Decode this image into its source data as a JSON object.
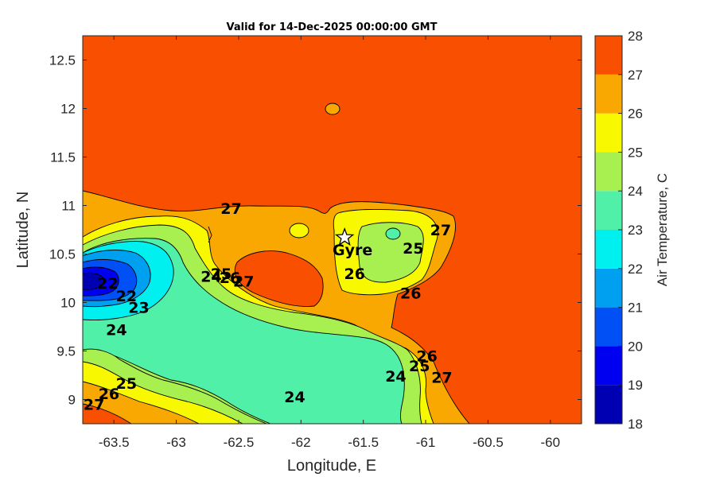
{
  "chart_data": {
    "type": "contour",
    "title": "Valid for 14-Dec-2025 00:00:00 GMT",
    "xlabel": "Longitude, E",
    "ylabel": "Latitude, N",
    "xlim": [
      -63.75,
      -59.75
    ],
    "ylim": [
      8.75,
      12.75
    ],
    "xticks": [
      -63.5,
      -63,
      -62.5,
      -62,
      -61.5,
      -61,
      -60.5,
      -60
    ],
    "xtick_labels": [
      "-63.5",
      "-63",
      "-62.5",
      "-62",
      "-61.5",
      "-61",
      "-60.5",
      "-60"
    ],
    "yticks": [
      9,
      9.5,
      10,
      10.5,
      11,
      11.5,
      12,
      12.5
    ],
    "ytick_labels": [
      "9",
      "9.5",
      "10",
      "10.5",
      "11",
      "11.5",
      "12",
      "12.5"
    ],
    "colorbar": {
      "label": "Air Temperature, C",
      "levels": [
        18,
        19,
        20,
        21,
        22,
        23,
        24,
        25,
        26,
        27,
        28
      ],
      "level_labels": [
        "18",
        "19",
        "20",
        "21",
        "22",
        "23",
        "24",
        "25",
        "26",
        "27",
        "28"
      ],
      "colors": [
        "#0000b3",
        "#0000f0",
        "#0050f5",
        "#00a0f0",
        "#00f0f0",
        "#50f0a8",
        "#a8f050",
        "#f8f800",
        "#f8a800",
        "#f85000",
        "#f80000"
      ]
    },
    "contour_labels": [
      {
        "text": "27",
        "lon": -62.56,
        "lat": 10.97
      },
      {
        "text": "24",
        "lon": -62.72,
        "lat": 10.27
      },
      {
        "text": "25",
        "lon": -62.64,
        "lat": 10.3
      },
      {
        "text": "26",
        "lon": -62.57,
        "lat": 10.26
      },
      {
        "text": "27",
        "lon": -62.46,
        "lat": 10.22
      },
      {
        "text": "26",
        "lon": -61.57,
        "lat": 10.3
      },
      {
        "text": "25",
        "lon": -61.1,
        "lat": 10.56
      },
      {
        "text": "27",
        "lon": -60.88,
        "lat": 10.75
      },
      {
        "text": "26",
        "lon": -61.12,
        "lat": 10.1
      },
      {
        "text": "22",
        "lon": -63.55,
        "lat": 10.2
      },
      {
        "text": "22",
        "lon": -63.4,
        "lat": 10.07
      },
      {
        "text": "23",
        "lon": -63.3,
        "lat": 9.95
      },
      {
        "text": "24",
        "lon": -63.48,
        "lat": 9.72
      },
      {
        "text": "24",
        "lon": -62.05,
        "lat": 9.03
      },
      {
        "text": "24",
        "lon": -61.24,
        "lat": 9.24
      },
      {
        "text": "25",
        "lon": -61.05,
        "lat": 9.35
      },
      {
        "text": "26",
        "lon": -60.99,
        "lat": 9.45
      },
      {
        "text": "27",
        "lon": -60.87,
        "lat": 9.23
      },
      {
        "text": "25",
        "lon": -63.4,
        "lat": 9.17
      },
      {
        "text": "26",
        "lon": -63.54,
        "lat": 9.06
      },
      {
        "text": "27",
        "lon": -63.66,
        "lat": 8.95
      }
    ],
    "marker": {
      "label": "Gyre",
      "lon": -61.65,
      "lat": 10.67,
      "symbol": "star"
    }
  }
}
